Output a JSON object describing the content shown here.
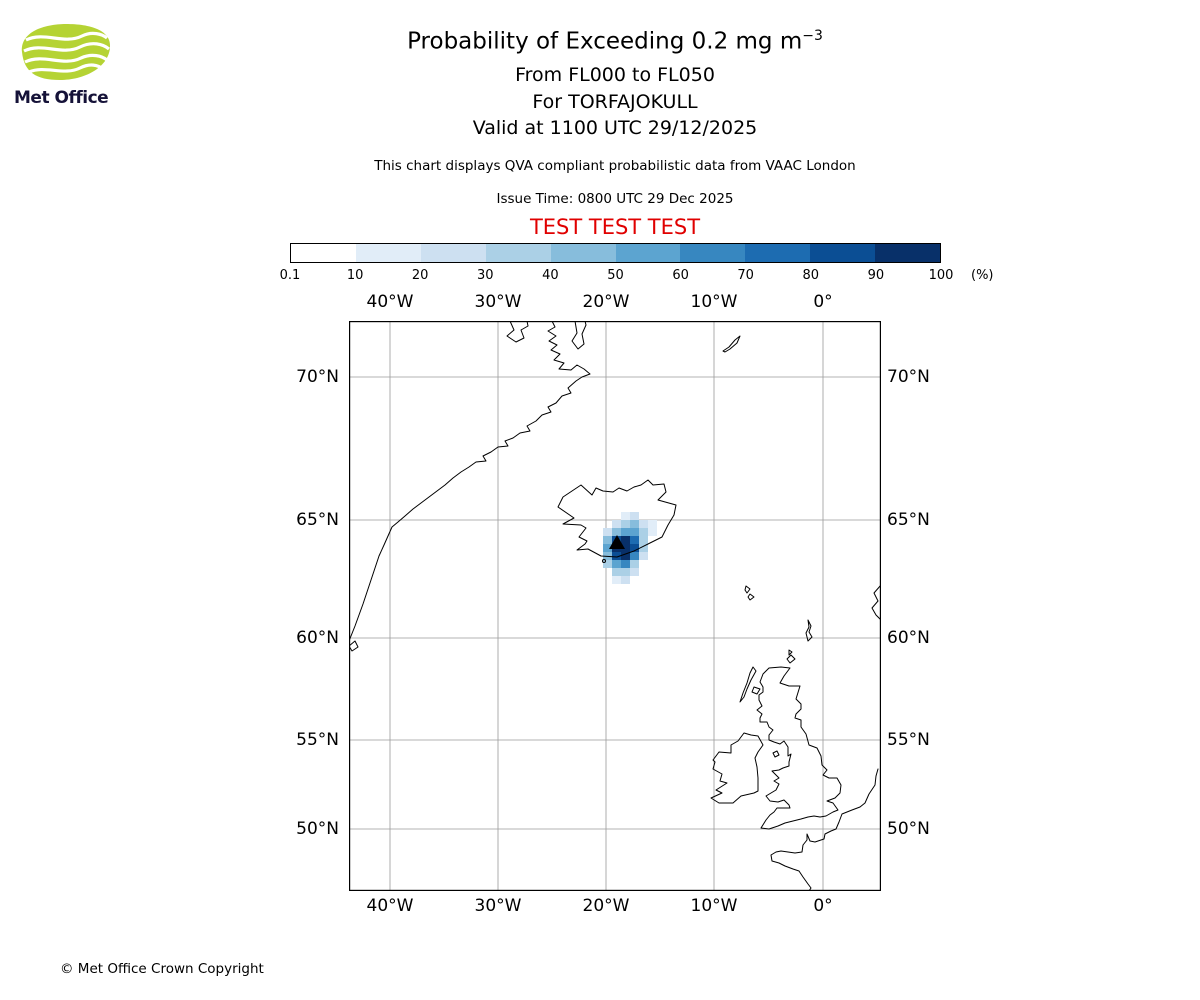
{
  "header": {
    "logo_text": "Met Office",
    "title_prefix": "Probability of Exceeding 0.2 mg m",
    "title_exponent": "−3",
    "line_flight_levels": "From FL000 to FL050",
    "line_volcano": "For TORFAJOKULL",
    "line_valid": "Valid at 1100 UTC 29/12/2025",
    "qva_note": "This chart displays QVA compliant probabilistic data from VAAC London",
    "issue_time": "Issue Time: 0800 UTC 29 Dec 2025",
    "test_banner": "TEST TEST TEST"
  },
  "colorbar": {
    "tick_labels": [
      "0.1",
      "10",
      "20",
      "30",
      "40",
      "50",
      "60",
      "70",
      "80",
      "90",
      "100"
    ],
    "unit_label": "(%)",
    "colors": [
      "#ffffff",
      "#e1edf8",
      "#cde0f1",
      "#abd0e6",
      "#87bddc",
      "#5ca4d0",
      "#3787c0",
      "#1d6cb1",
      "#0b4e94",
      "#083069"
    ]
  },
  "map": {
    "lon_labels": [
      "40°W",
      "30°W",
      "20°W",
      "10°W",
      "0°"
    ],
    "lat_labels": [
      "70°N",
      "65°N",
      "60°N",
      "55°N",
      "50°N"
    ],
    "volcano_name": "TORFAJOKULL",
    "probability_cells": [
      [
        3,
        0,
        1
      ],
      [
        4,
        0,
        2
      ],
      [
        2,
        1,
        2
      ],
      [
        3,
        1,
        3
      ],
      [
        4,
        1,
        4
      ],
      [
        5,
        1,
        2
      ],
      [
        6,
        1,
        1
      ],
      [
        1,
        2,
        2
      ],
      [
        2,
        2,
        4
      ],
      [
        3,
        2,
        5
      ],
      [
        4,
        2,
        5
      ],
      [
        5,
        2,
        3
      ],
      [
        6,
        2,
        1
      ],
      [
        1,
        3,
        4
      ],
      [
        2,
        3,
        8
      ],
      [
        3,
        3,
        9
      ],
      [
        4,
        3,
        7
      ],
      [
        5,
        3,
        3
      ],
      [
        1,
        4,
        5
      ],
      [
        2,
        4,
        9
      ],
      [
        3,
        4,
        9
      ],
      [
        4,
        4,
        8
      ],
      [
        5,
        4,
        3
      ],
      [
        1,
        5,
        4
      ],
      [
        2,
        5,
        8
      ],
      [
        3,
        5,
        9
      ],
      [
        4,
        5,
        6
      ],
      [
        5,
        5,
        2
      ],
      [
        1,
        6,
        3
      ],
      [
        2,
        6,
        5
      ],
      [
        3,
        6,
        6
      ],
      [
        4,
        6,
        3
      ],
      [
        2,
        7,
        3
      ],
      [
        3,
        7,
        3
      ],
      [
        4,
        7,
        2
      ],
      [
        2,
        8,
        1
      ],
      [
        3,
        8,
        2
      ]
    ]
  },
  "footer": {
    "copyright": "© Met Office Crown Copyright"
  },
  "accent_colors": {
    "test_red": "#e00000",
    "logo_green": "#b5d334",
    "logo_text_color": "#151238"
  }
}
